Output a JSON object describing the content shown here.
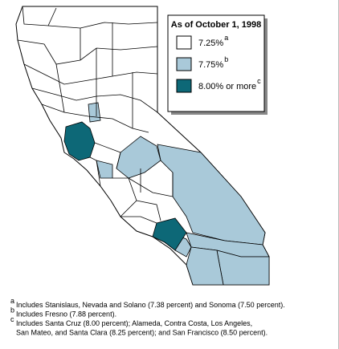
{
  "legend": {
    "title": "As of October 1, 1998",
    "items": [
      {
        "label": "7.25%",
        "note": "a",
        "color": "#ffffff"
      },
      {
        "label": "7.75%",
        "note": "b",
        "color": "#a9c9d9"
      },
      {
        "label": "8.00% or more",
        "note": "c",
        "color": "#0d6877"
      }
    ]
  },
  "footnotes": [
    {
      "mark": "a",
      "lines": [
        "Includes Stanislaus, Nevada and Solano (7.38 percent) and Sonoma (7.50 percent)."
      ]
    },
    {
      "mark": "b",
      "lines": [
        "Includes Fresno (7.88 percent)."
      ]
    },
    {
      "mark": "c",
      "lines": [
        "Includes Santa Cruz (8.00 percent); Alameda, Contra Costa, Los Angeles,",
        "San Mateo, and Santa Clara (8.25 percent); and San Francisco (8.50 percent)."
      ]
    }
  ]
}
